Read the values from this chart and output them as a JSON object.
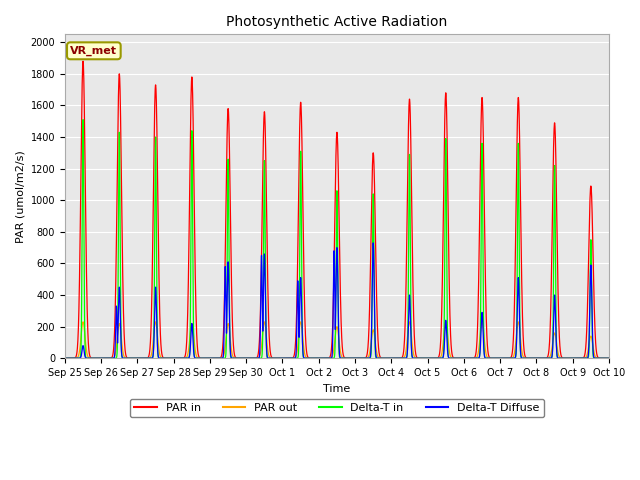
{
  "title": "Photosynthetic Active Radiation",
  "ylabel": "PAR (umol/m2/s)",
  "xlabel": "Time",
  "annotation": "VR_met",
  "ylim": [
    0,
    2050
  ],
  "background_color": "#e8e8e8",
  "legend_labels": [
    "PAR in",
    "PAR out",
    "Delta-T in",
    "Delta-T Diffuse"
  ],
  "legend_colors": [
    "red",
    "orange",
    "lime",
    "blue"
  ],
  "num_days": 15,
  "day_labels": [
    "Sep 25",
    "Sep 26",
    "Sep 27",
    "Sep 28",
    "Sep 29",
    "Sep 30",
    "Oct 1",
    "Oct 2",
    "Oct 3",
    "Oct 4",
    "Oct 5",
    "Oct 6",
    "Oct 7",
    "Oct 8",
    "Oct 9",
    "Oct 10"
  ],
  "par_in_peaks": [
    1880,
    1800,
    1730,
    1780,
    1580,
    1560,
    1620,
    1430,
    1300,
    1640,
    1680,
    1650,
    1650,
    1490,
    1090
  ],
  "par_out_peaks": [
    230,
    220,
    230,
    220,
    220,
    230,
    230,
    200,
    180,
    230,
    230,
    230,
    230,
    160,
    140
  ],
  "delta_t_peaks": [
    1510,
    1430,
    1400,
    1440,
    1260,
    1250,
    1310,
    1060,
    1040,
    1290,
    1390,
    1360,
    1360,
    1220,
    750
  ],
  "delta_d_peaks": [
    80,
    450,
    450,
    220,
    610,
    660,
    510,
    700,
    730,
    400,
    240,
    290,
    510,
    400,
    590
  ],
  "delta_d_secondary": [
    0,
    330,
    0,
    0,
    580,
    650,
    490,
    680,
    0,
    0,
    0,
    0,
    0,
    0,
    0
  ]
}
